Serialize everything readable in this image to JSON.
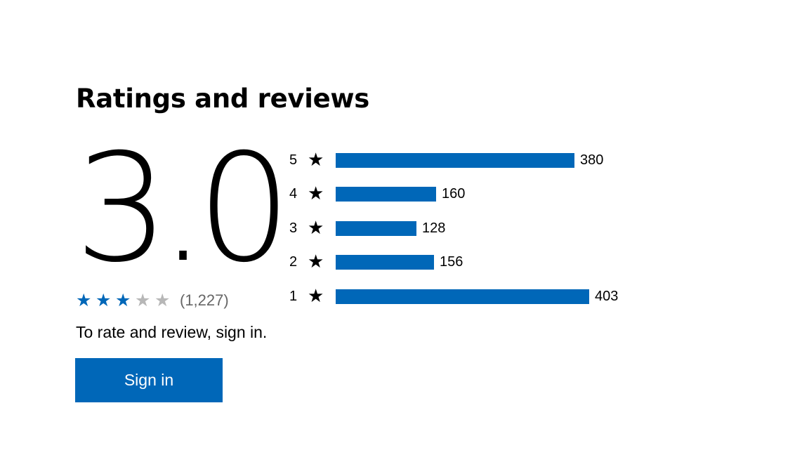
{
  "ratings": {
    "title": "Ratings and reviews",
    "average": "3.0",
    "average_stars": 3,
    "max_stars": 5,
    "review_count": "(1,227)",
    "signin_prompt": "To rate and review, sign in.",
    "signin_button": "Sign in",
    "star_glyph": "★",
    "colors": {
      "accent": "#0067b8",
      "star_filled": "#0067b8",
      "star_empty": "#b7b7b7"
    },
    "distribution": [
      {
        "stars": "5",
        "count": "380",
        "value": 380
      },
      {
        "stars": "4",
        "count": "160",
        "value": 160
      },
      {
        "stars": "3",
        "count": "128",
        "value": 128
      },
      {
        "stars": "2",
        "count": "156",
        "value": 156
      },
      {
        "stars": "1",
        "count": "403",
        "value": 403
      }
    ]
  }
}
